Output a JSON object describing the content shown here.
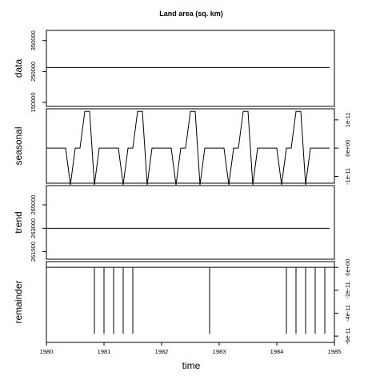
{
  "chart_data": {
    "type": "line",
    "title": "Land area (sq. km)",
    "xlabel": "time",
    "xlim": [
      1980,
      1985
    ],
    "x_ticks": [
      "1980",
      "1981",
      "1982",
      "1983",
      "1984",
      "1985"
    ],
    "x_tick_values": [
      1980,
      1981,
      1982,
      1983,
      1984,
      1985
    ],
    "frequency": 12,
    "start": 1980,
    "panels": [
      {
        "name": "data",
        "ylabel": "data",
        "ylim": [
          150000,
          370000
        ],
        "ticks": [
          "150000",
          "250000",
          "350000"
        ],
        "tick_values": [
          150000,
          250000,
          350000
        ],
        "tick_side": "left",
        "values": [
          263000,
          263000,
          263000,
          263000,
          263000,
          263000,
          263000,
          263000,
          263000,
          263000,
          263000,
          263000,
          263000,
          263000,
          263000,
          263000,
          263000,
          263000,
          263000,
          263000,
          263000,
          263000,
          263000,
          263000,
          263000,
          263000,
          263000,
          263000,
          263000,
          263000,
          263000,
          263000,
          263000,
          263000,
          263000,
          263000,
          263000,
          263000,
          263000,
          263000,
          263000,
          263000,
          263000,
          263000,
          263000,
          263000,
          263000,
          263000,
          263000,
          263000,
          263000,
          263000,
          263000,
          263000,
          263000,
          263000,
          263000,
          263000,
          263000,
          263000
        ]
      },
      {
        "name": "seasonal",
        "ylabel": "seasonal",
        "ylim": [
          -1.1e-11,
          1.25e-11
        ],
        "ticks": [
          "-1e-11",
          "0e+00",
          "1e-11"
        ],
        "tick_values": [
          -1e-11,
          0,
          1e-11
        ],
        "tick_side": "right",
        "values": [
          0,
          0,
          0,
          0,
          0,
          -1.3e-11,
          0,
          0,
          1.3e-11,
          1.3e-11,
          -1.3e-11,
          0,
          0,
          0,
          0,
          0,
          -1.3e-11,
          0,
          0,
          1.3e-11,
          1.3e-11,
          -1.3e-11,
          0,
          0,
          0,
          0,
          0,
          -1.3e-11,
          0,
          0,
          1.3e-11,
          1.3e-11,
          -1.3e-11,
          0,
          0,
          0,
          0,
          0,
          -1.3e-11,
          0,
          0,
          1.3e-11,
          1.3e-11,
          -1.3e-11,
          0,
          0,
          0,
          0,
          0,
          -1.3e-11,
          0,
          0,
          1.3e-11,
          1.3e-11,
          -1.3e-11,
          0,
          0,
          0,
          0,
          0
        ]
      },
      {
        "name": "trend",
        "ylabel": "trend",
        "ylim": [
          260700,
          266300
        ],
        "ticks": [
          "261000",
          "263000",
          "265000"
        ],
        "tick_values": [
          261000,
          263000,
          265000
        ],
        "tick_side": "left",
        "values": [
          263000,
          263000,
          263000,
          263000,
          263000,
          263000,
          263000,
          263000,
          263000,
          263000,
          263000,
          263000,
          263000,
          263000,
          263000,
          263000,
          263000,
          263000,
          263000,
          263000,
          263000,
          263000,
          263000,
          263000,
          263000,
          263000,
          263000,
          263000,
          263000,
          263000,
          263000,
          263000,
          263000,
          263000,
          263000,
          263000,
          263000,
          263000,
          263000,
          263000,
          263000,
          263000,
          263000,
          263000,
          263000,
          263000,
          263000,
          263000,
          263000,
          263000,
          263000,
          263000,
          263000,
          263000,
          263000,
          263000,
          263000,
          263000,
          263000,
          263000
        ]
      },
      {
        "name": "remainder",
        "ylabel": "remainder",
        "ylim": [
          -6.2e-11,
          1.5e-12
        ],
        "ticks": [
          "-6e-11",
          "-4e-11",
          "-2e-11",
          "0e+00"
        ],
        "tick_values": [
          -6e-11,
          -4e-11,
          -2e-11,
          0
        ],
        "tick_side": "right",
        "bar_type": "vertical_lines_from_zero",
        "values": [
          0,
          0,
          0,
          0,
          0,
          0,
          0,
          0,
          0,
          0,
          -5.8e-11,
          0,
          -5.8e-11,
          0,
          -5.8e-11,
          0,
          -5.8e-11,
          0,
          -5.8e-11,
          0,
          0,
          0,
          0,
          0,
          0,
          0,
          0,
          0,
          0,
          0,
          0,
          0,
          0,
          0,
          -5.8e-11,
          0,
          0,
          0,
          0,
          0,
          0,
          0,
          0,
          0,
          0,
          0,
          0,
          0,
          0,
          0,
          -5.8e-11,
          0,
          -5.8e-11,
          0,
          -5.8e-11,
          0,
          -5.8e-11,
          0,
          -5.8e-11,
          0
        ]
      }
    ],
    "grid": false,
    "legend": "none"
  }
}
